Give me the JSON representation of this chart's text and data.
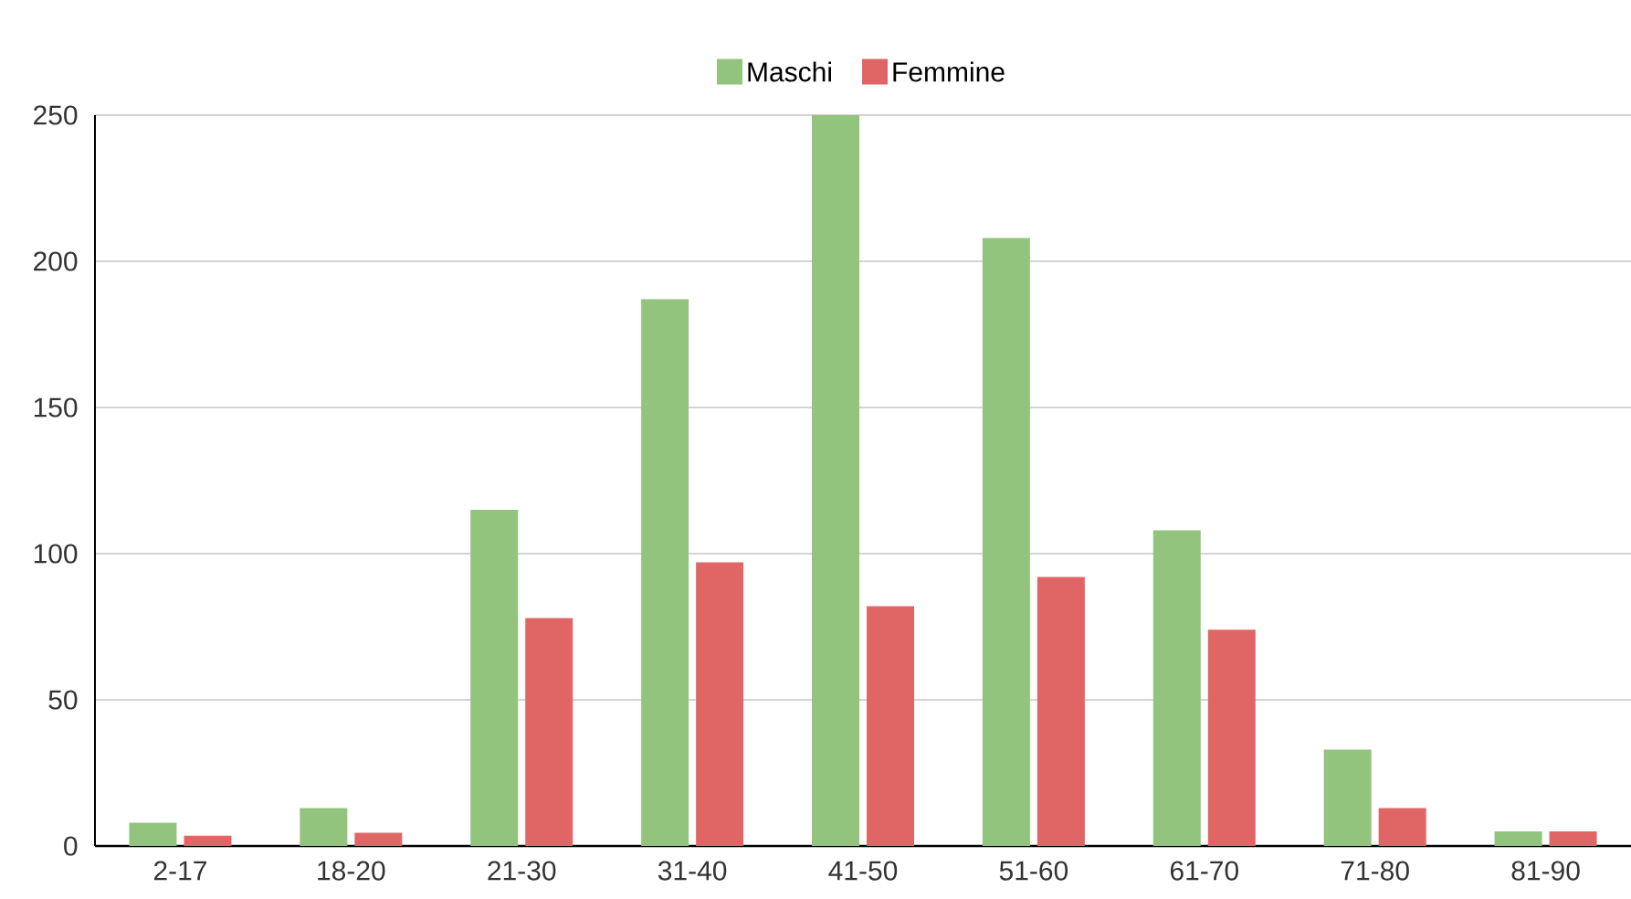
{
  "chart_data": {
    "type": "bar",
    "categories": [
      "2-17",
      "18-20",
      "21-30",
      "31-40",
      "41-50",
      "51-60",
      "61-70",
      "71-80",
      "81-90"
    ],
    "series": [
      {
        "name": "Maschi",
        "color": "#93c47d",
        "values": [
          8,
          13,
          115,
          187,
          250,
          208,
          108,
          33,
          5
        ]
      },
      {
        "name": "Femmine",
        "color": "#e06666",
        "values": [
          3.5,
          4.5,
          78,
          97,
          82,
          92,
          74,
          13,
          5
        ]
      }
    ],
    "ylim": [
      0,
      250
    ],
    "yticks": [
      0,
      50,
      100,
      150,
      200,
      250
    ],
    "grid": "y",
    "legend": "top"
  }
}
